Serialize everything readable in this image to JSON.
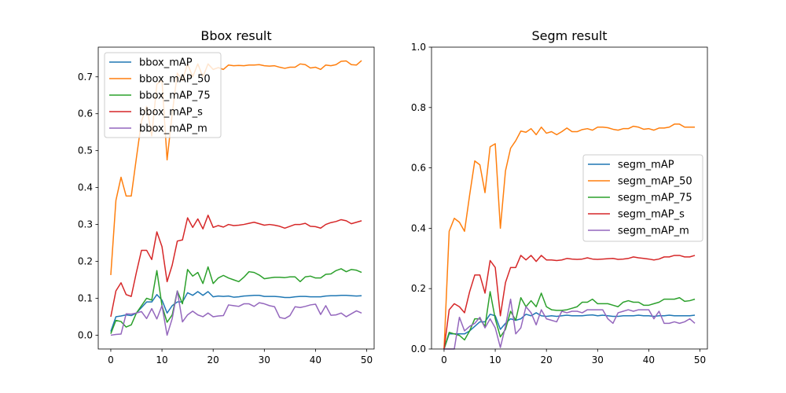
{
  "chart_data": [
    {
      "type": "line",
      "title": "Bbox result",
      "xlim": [
        -2.45,
        51.45
      ],
      "ylim": [
        -0.0374,
        0.7804
      ],
      "xticks": [
        0,
        10,
        20,
        30,
        40,
        50
      ],
      "yticks": [
        0.0,
        0.1,
        0.2,
        0.3,
        0.4,
        0.5,
        0.6,
        0.7
      ],
      "ytick_labels": [
        "0.0",
        "0.1",
        "0.2",
        "0.3",
        "0.4",
        "0.5",
        "0.6",
        "0.7"
      ],
      "legend_position": "upper-left",
      "series": [
        {
          "name": "bbox_mAP",
          "color": "#1f77b4",
          "values": [
            0.01,
            0.05,
            0.052,
            0.055,
            0.053,
            0.06,
            0.075,
            0.09,
            0.09,
            0.11,
            0.095,
            0.06,
            0.08,
            0.09,
            0.09,
            0.115,
            0.108,
            0.118,
            0.108,
            0.118,
            0.104,
            0.106,
            0.105,
            0.106,
            0.103,
            0.104,
            0.106,
            0.107,
            0.108,
            0.108,
            0.105,
            0.105,
            0.105,
            0.104,
            0.102,
            0.102,
            0.104,
            0.105,
            0.105,
            0.104,
            0.104,
            0.104,
            0.106,
            0.107,
            0.107,
            0.108,
            0.108,
            0.107,
            0.106,
            0.107
          ]
        },
        {
          "name": "bbox_mAP_50",
          "color": "#ff7f0e",
          "values": [
            0.163,
            0.365,
            0.428,
            0.377,
            0.377,
            0.48,
            0.58,
            0.62,
            0.54,
            0.68,
            0.69,
            0.475,
            0.6,
            0.71,
            0.69,
            0.735,
            0.7,
            0.735,
            0.7,
            0.735,
            0.72,
            0.725,
            0.72,
            0.732,
            0.73,
            0.731,
            0.73,
            0.732,
            0.732,
            0.733,
            0.73,
            0.729,
            0.73,
            0.726,
            0.723,
            0.726,
            0.726,
            0.735,
            0.733,
            0.724,
            0.726,
            0.72,
            0.732,
            0.73,
            0.733,
            0.742,
            0.743,
            0.733,
            0.732,
            0.744
          ]
        },
        {
          "name": "bbox_mAP_75",
          "color": "#2ca02c",
          "values": [
            0.004,
            0.04,
            0.037,
            0.022,
            0.028,
            0.06,
            0.08,
            0.1,
            0.095,
            0.175,
            0.08,
            0.035,
            0.055,
            0.12,
            0.085,
            0.178,
            0.16,
            0.17,
            0.14,
            0.185,
            0.14,
            0.155,
            0.162,
            0.155,
            0.15,
            0.145,
            0.157,
            0.172,
            0.17,
            0.163,
            0.153,
            0.155,
            0.157,
            0.157,
            0.156,
            0.158,
            0.158,
            0.145,
            0.158,
            0.16,
            0.155,
            0.155,
            0.165,
            0.166,
            0.175,
            0.18,
            0.172,
            0.178,
            0.176,
            0.17
          ]
        },
        {
          "name": "bbox_mAP_s",
          "color": "#d62728",
          "values": [
            0.05,
            0.12,
            0.142,
            0.11,
            0.105,
            0.17,
            0.23,
            0.23,
            0.205,
            0.28,
            0.24,
            0.145,
            0.19,
            0.255,
            0.258,
            0.318,
            0.292,
            0.315,
            0.288,
            0.325,
            0.292,
            0.297,
            0.293,
            0.3,
            0.297,
            0.298,
            0.3,
            0.303,
            0.306,
            0.302,
            0.298,
            0.3,
            0.298,
            0.295,
            0.29,
            0.295,
            0.3,
            0.3,
            0.303,
            0.295,
            0.294,
            0.29,
            0.3,
            0.305,
            0.308,
            0.313,
            0.31,
            0.302,
            0.306,
            0.31
          ]
        },
        {
          "name": "bbox_mAP_m",
          "color": "#9467bd",
          "values": [
            0.0,
            0.002,
            0.003,
            0.058,
            0.057,
            0.06,
            0.064,
            0.045,
            0.072,
            0.044,
            0.08,
            0.0,
            0.045,
            0.12,
            0.036,
            0.055,
            0.065,
            0.055,
            0.05,
            0.06,
            0.05,
            0.052,
            0.053,
            0.082,
            0.08,
            0.078,
            0.085,
            0.085,
            0.078,
            0.088,
            0.085,
            0.08,
            0.077,
            0.048,
            0.045,
            0.053,
            0.077,
            0.075,
            0.078,
            0.082,
            0.084,
            0.056,
            0.08,
            0.054,
            0.055,
            0.06,
            0.05,
            0.058,
            0.066,
            0.06
          ]
        }
      ]
    },
    {
      "type": "line",
      "title": "Segm result",
      "xlim": [
        -2.45,
        51.45
      ],
      "ylim": [
        0.0,
        1.0
      ],
      "xticks": [
        0,
        10,
        20,
        30,
        40,
        50
      ],
      "yticks": [
        0.0,
        0.2,
        0.4,
        0.6,
        0.8,
        1.0
      ],
      "ytick_labels": [
        "0.0",
        "0.2",
        "0.4",
        "0.6",
        "0.8",
        "1.0"
      ],
      "legend_position": "center-right",
      "series": [
        {
          "name": "segm_mAP",
          "color": "#1f77b4",
          "values": [
            0.0,
            0.05,
            0.05,
            0.05,
            0.05,
            0.06,
            0.075,
            0.09,
            0.09,
            0.115,
            0.11,
            0.065,
            0.085,
            0.1,
            0.095,
            0.1,
            0.115,
            0.11,
            0.12,
            0.11,
            0.108,
            0.11,
            0.108,
            0.11,
            0.112,
            0.11,
            0.11,
            0.11,
            0.112,
            0.113,
            0.11,
            0.112,
            0.11,
            0.108,
            0.108,
            0.11,
            0.11,
            0.11,
            0.112,
            0.11,
            0.11,
            0.108,
            0.11,
            0.11,
            0.112,
            0.11,
            0.11,
            0.11,
            0.11,
            0.112
          ]
        },
        {
          "name": "segm_mAP_50",
          "color": "#ff7f0e",
          "values": [
            0.0,
            0.39,
            0.433,
            0.42,
            0.39,
            0.51,
            0.623,
            0.61,
            0.518,
            0.67,
            0.68,
            0.4,
            0.59,
            0.665,
            0.69,
            0.722,
            0.718,
            0.73,
            0.71,
            0.735,
            0.715,
            0.72,
            0.71,
            0.72,
            0.732,
            0.72,
            0.72,
            0.727,
            0.73,
            0.725,
            0.735,
            0.735,
            0.733,
            0.728,
            0.725,
            0.73,
            0.73,
            0.738,
            0.735,
            0.728,
            0.73,
            0.725,
            0.732,
            0.732,
            0.735,
            0.745,
            0.745,
            0.735,
            0.735,
            0.735
          ]
        },
        {
          "name": "segm_mAP_75",
          "color": "#2ca02c",
          "values": [
            0.0,
            0.055,
            0.05,
            0.045,
            0.03,
            0.06,
            0.1,
            0.1,
            0.075,
            0.19,
            0.1,
            0.04,
            0.065,
            0.125,
            0.095,
            0.17,
            0.14,
            0.16,
            0.14,
            0.185,
            0.14,
            0.13,
            0.128,
            0.128,
            0.13,
            0.135,
            0.14,
            0.155,
            0.155,
            0.165,
            0.15,
            0.15,
            0.15,
            0.145,
            0.14,
            0.155,
            0.16,
            0.155,
            0.155,
            0.145,
            0.145,
            0.15,
            0.155,
            0.165,
            0.165,
            0.165,
            0.17,
            0.158,
            0.16,
            0.165
          ]
        },
        {
          "name": "segm_mAP_s",
          "color": "#d62728",
          "values": [
            0.0,
            0.13,
            0.15,
            0.14,
            0.12,
            0.19,
            0.245,
            0.245,
            0.185,
            0.293,
            0.27,
            0.11,
            0.22,
            0.27,
            0.27,
            0.31,
            0.295,
            0.31,
            0.29,
            0.31,
            0.295,
            0.295,
            0.293,
            0.295,
            0.3,
            0.298,
            0.297,
            0.298,
            0.302,
            0.298,
            0.297,
            0.298,
            0.299,
            0.3,
            0.297,
            0.298,
            0.3,
            0.305,
            0.302,
            0.3,
            0.298,
            0.295,
            0.298,
            0.305,
            0.305,
            0.31,
            0.31,
            0.305,
            0.305,
            0.31
          ]
        },
        {
          "name": "segm_mAP_m",
          "color": "#9467bd",
          "values": [
            0.0,
            0.0,
            0.0,
            0.105,
            0.06,
            0.075,
            0.085,
            0.105,
            0.07,
            0.1,
            0.07,
            0.005,
            0.075,
            0.165,
            0.05,
            0.07,
            0.14,
            0.12,
            0.08,
            0.13,
            0.1,
            0.095,
            0.09,
            0.125,
            0.12,
            0.125,
            0.125,
            0.12,
            0.13,
            0.13,
            0.13,
            0.13,
            0.1,
            0.085,
            0.12,
            0.125,
            0.13,
            0.125,
            0.13,
            0.13,
            0.13,
            0.1,
            0.125,
            0.085,
            0.085,
            0.09,
            0.085,
            0.09,
            0.1,
            0.085
          ]
        }
      ]
    }
  ]
}
